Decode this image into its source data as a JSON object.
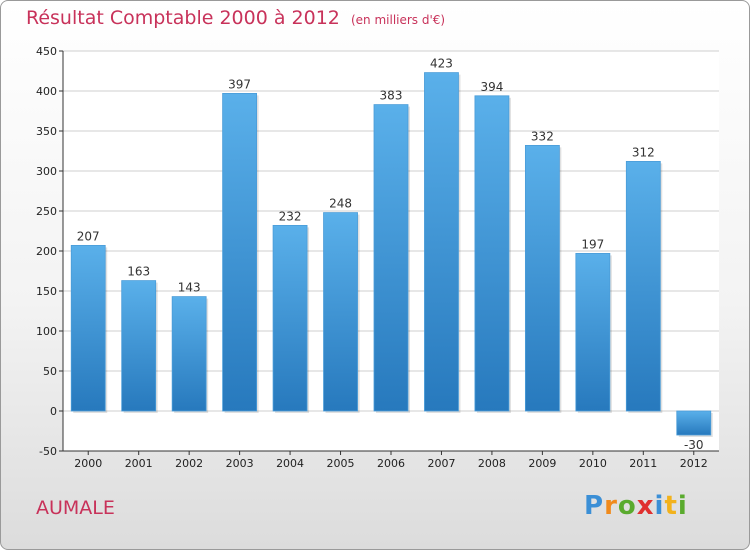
{
  "chart_data": {
    "type": "bar",
    "title": "Résultat Comptable 2000 à 2012",
    "subtitle": "(en milliers d'€)",
    "categories": [
      "2000",
      "2001",
      "2002",
      "2003",
      "2004",
      "2005",
      "2006",
      "2007",
      "2008",
      "2009",
      "2010",
      "2011",
      "2012"
    ],
    "values": [
      207,
      163,
      143,
      397,
      232,
      248,
      383,
      423,
      394,
      332,
      197,
      312,
      -30
    ],
    "ylim": [
      -50,
      450
    ],
    "yticks": [
      -50,
      0,
      50,
      100,
      150,
      200,
      250,
      300,
      350,
      400,
      450
    ],
    "grid": true,
    "xlabel": "",
    "ylabel": ""
  },
  "commune": "AUMALE",
  "logo": {
    "letters": [
      "P",
      "r",
      "o",
      "x",
      "i",
      "t",
      "i"
    ],
    "colors": [
      "#3b8fd6",
      "#f08a1c",
      "#5aab2e",
      "#e0302f",
      "#3b8fd6",
      "#f2b21c",
      "#5aab2e"
    ]
  },
  "colors": {
    "title": "#c8325a",
    "bar_light": "#5ab0ea",
    "bar_dark": "#2779bd"
  }
}
